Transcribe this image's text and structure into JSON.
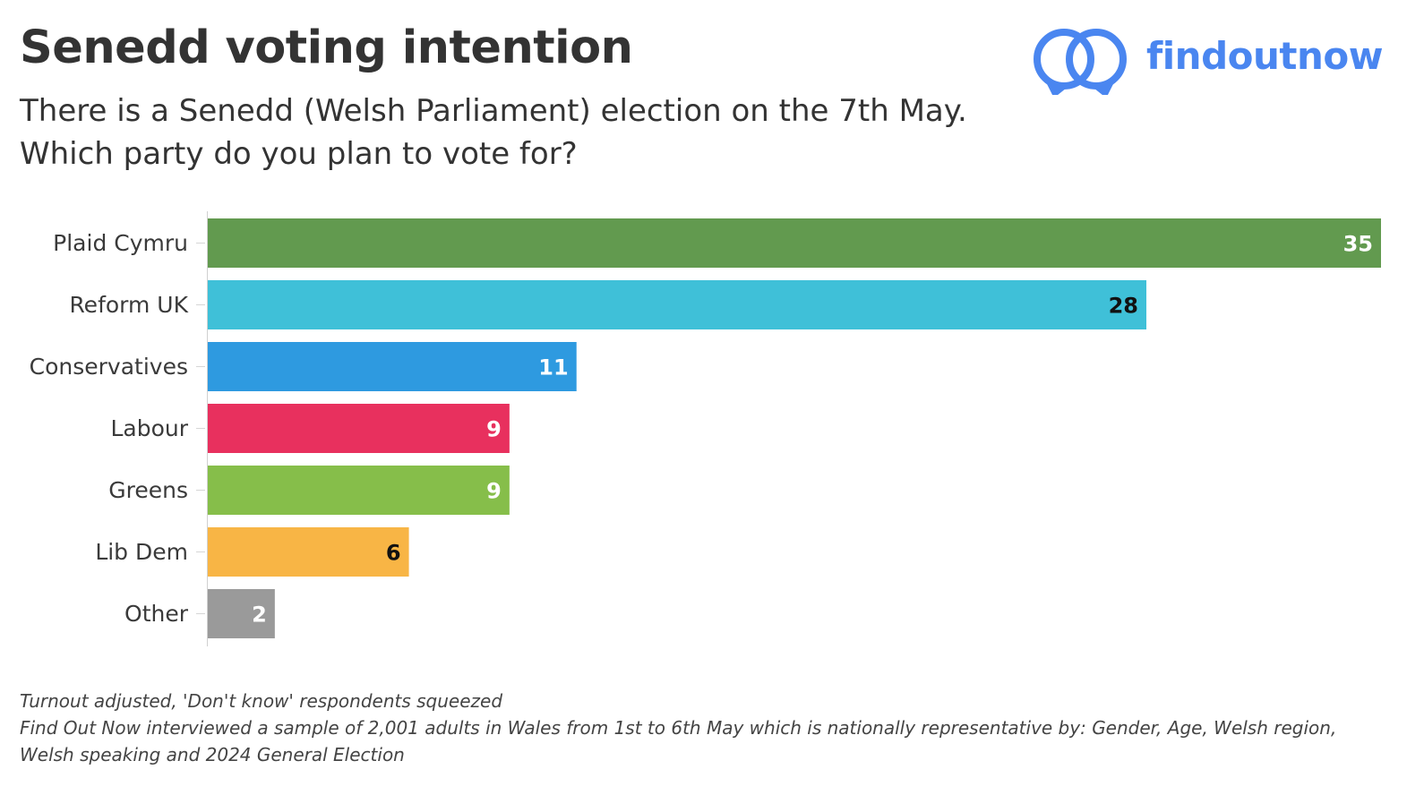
{
  "header": {
    "title": "Senedd voting intention",
    "subtitle": "There is a Senedd (Welsh Parliament) election on the 7th May. Which party do you plan to vote for?"
  },
  "brand": {
    "name": "findoutnow",
    "icon": "findoutnow-logo-icon",
    "color": "#4a86f0"
  },
  "chart_data": {
    "type": "bar",
    "orientation": "horizontal",
    "categories": [
      "Plaid Cymru",
      "Reform UK",
      "Conservatives",
      "Labour",
      "Greens",
      "Lib Dem",
      "Other"
    ],
    "values": [
      35,
      28,
      11,
      9,
      9,
      6,
      2
    ],
    "colors": [
      "#629a4f",
      "#3fc0d8",
      "#2e9ae0",
      "#e8305e",
      "#86be4a",
      "#f8b545",
      "#9a9a9a"
    ],
    "xlim": [
      0,
      35
    ],
    "data_labels": true,
    "grid": false,
    "legend": "none"
  },
  "footer": {
    "note1": "Turnout adjusted, 'Don't know' respondents squeezed",
    "note2": "Find Out Now interviewed a sample of 2,001 adults in Wales from 1st to 6th May which is nationally representative by: Gender, Age, Welsh region, Welsh speaking and 2024 General Election"
  }
}
